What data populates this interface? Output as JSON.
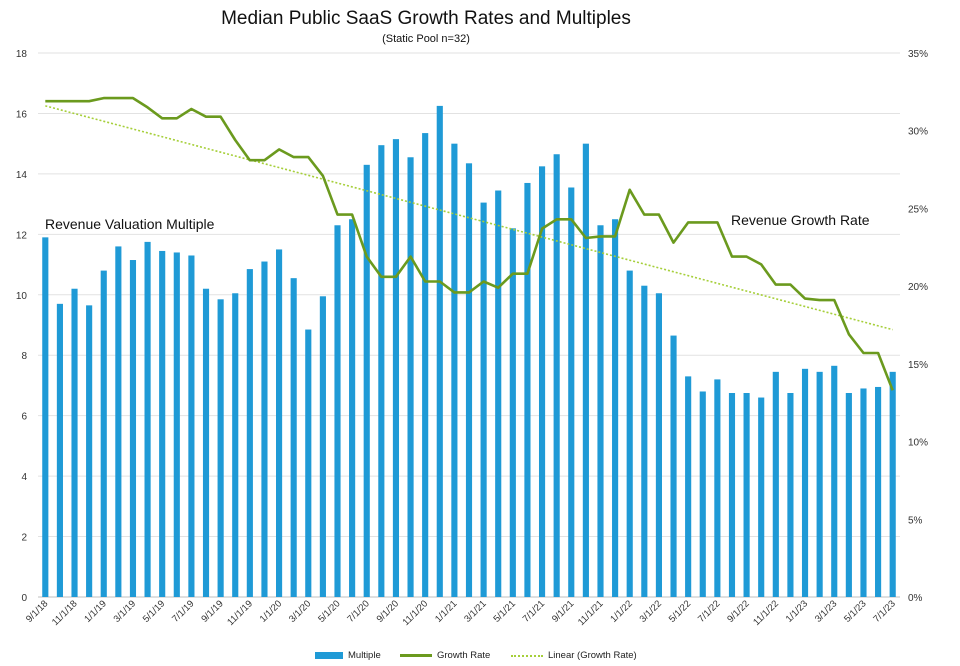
{
  "chart_data": {
    "type": "bar+line",
    "title": "Median Public SaaS Growth Rates and Multiples",
    "subtitle": "(Static Pool n=32)",
    "annotations": {
      "left": "Revenue Valuation Multiple",
      "right": "Revenue Growth Rate"
    },
    "x_tick_labels": [
      "9/1/18",
      "11/1/18",
      "1/1/19",
      "3/1/19",
      "5/1/19",
      "7/1/19",
      "9/1/19",
      "11/1/19",
      "1/1/20",
      "3/1/20",
      "5/1/20",
      "7/1/20",
      "9/1/20",
      "11/1/20",
      "1/1/21",
      "3/1/21",
      "5/1/21",
      "7/1/21",
      "9/1/21",
      "11/1/21",
      "1/1/22",
      "3/1/22",
      "5/1/22",
      "7/1/22",
      "9/1/22",
      "11/1/22",
      "1/1/23",
      "3/1/23",
      "5/1/23",
      "7/1/23"
    ],
    "y_left": {
      "min": 0,
      "max": 18,
      "step": 2,
      "ticks": [
        "0",
        "2",
        "4",
        "6",
        "8",
        "10",
        "12",
        "14",
        "16",
        "18"
      ]
    },
    "y_right": {
      "min": 0,
      "max": 0.35,
      "ticks": [
        "0%",
        "5%",
        "10%",
        "15%",
        "20%",
        "25%",
        "30%",
        "35%"
      ]
    },
    "series": [
      {
        "name": "Multiple",
        "type": "bar",
        "axis": "left",
        "color": "#1f9ad6",
        "values": [
          11.9,
          9.7,
          10.2,
          9.65,
          10.8,
          11.6,
          11.15,
          11.75,
          11.45,
          11.4,
          11.3,
          10.2,
          9.85,
          10.05,
          10.85,
          11.1,
          11.5,
          10.55,
          8.85,
          9.95,
          12.3,
          12.5,
          14.3,
          14.95,
          15.15,
          14.55,
          15.35,
          16.25,
          15.0,
          14.35,
          13.05,
          13.45,
          12.2,
          13.7,
          14.25,
          14.65,
          13.55,
          15.0,
          12.3,
          12.5,
          10.8,
          10.3,
          10.05,
          8.65,
          7.3,
          6.8,
          7.2,
          6.75,
          6.75,
          6.6,
          7.45,
          6.75,
          7.55,
          7.45,
          7.65,
          6.75,
          6.9,
          6.95,
          7.45
        ]
      },
      {
        "name": "Growth Rate",
        "type": "line",
        "axis": "right",
        "color": "#6b9a1e",
        "values": [
          0.319,
          0.319,
          0.319,
          0.319,
          0.321,
          0.321,
          0.321,
          0.315,
          0.308,
          0.308,
          0.314,
          0.309,
          0.309,
          0.294,
          0.281,
          0.281,
          0.288,
          0.283,
          0.283,
          0.271,
          0.246,
          0.246,
          0.219,
          0.206,
          0.206,
          0.219,
          0.203,
          0.203,
          0.196,
          0.196,
          0.203,
          0.199,
          0.208,
          0.208,
          0.237,
          0.243,
          0.243,
          0.231,
          0.232,
          0.232,
          0.262,
          0.246,
          0.246,
          0.228,
          0.241,
          0.241,
          0.241,
          0.219,
          0.219,
          0.214,
          0.201,
          0.201,
          0.192,
          0.191,
          0.191,
          0.169,
          0.157,
          0.157,
          0.133
        ]
      },
      {
        "name": "Linear (Growth Rate)",
        "type": "trendline",
        "axis": "right",
        "color": "#a6cf3a",
        "start": 0.316,
        "end": 0.172
      }
    ]
  }
}
